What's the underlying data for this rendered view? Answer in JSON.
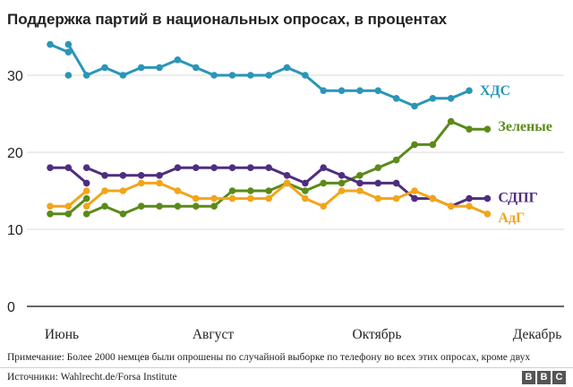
{
  "chart_data": {
    "type": "line",
    "title": "Поддержка партий в национальных опросах, в процентах",
    "ylim": [
      0,
      36
    ],
    "yticks": [
      0,
      10,
      20,
      30
    ],
    "grid": true,
    "x_tick_labels": [
      "Июнь",
      "Август",
      "Октябрь",
      "Декабрь"
    ],
    "series": [
      {
        "name": "ХДС",
        "color": "#2a95b8",
        "segments": [
          [
            34,
            33
          ],
          [
            30
          ],
          [
            34,
            30,
            31,
            30,
            31,
            31,
            32,
            31,
            30,
            30,
            30,
            30,
            31,
            30,
            28,
            28,
            28,
            28,
            27,
            26,
            27,
            27,
            28
          ]
        ]
      },
      {
        "name": "Зеленые",
        "color": "#5b8a1a",
        "segments": [
          [
            12,
            12,
            14
          ],
          [
            12,
            13,
            12,
            13,
            13,
            13,
            13,
            13,
            15,
            15,
            15,
            16,
            15,
            16,
            16,
            17,
            18,
            19,
            21,
            21,
            24,
            23,
            23
          ]
        ]
      },
      {
        "name": "СДПГ",
        "color": "#4f2d7f",
        "segments": [
          [
            18,
            18,
            16
          ],
          [
            18,
            17,
            17,
            17,
            17,
            18,
            18,
            18,
            18,
            18,
            18,
            17,
            16,
            18,
            17,
            16,
            16,
            16,
            14,
            14,
            13,
            14,
            14
          ]
        ]
      },
      {
        "name": "АдГ",
        "color": "#f2a51b",
        "segments": [
          [
            13,
            13,
            15
          ],
          [
            13,
            15,
            15,
            16,
            16,
            15,
            14,
            14,
            14,
            14,
            14,
            16,
            14,
            13,
            15,
            15,
            14,
            14,
            15,
            14,
            13,
            13,
            12
          ]
        ]
      }
    ]
  },
  "footer": {
    "note": "Примечание: Более 2000 немцев были опрошены по случайной выборке по телефону во всех этих опросах, кроме двух",
    "source": "Источники: Wahlrecht.de/Forsa Institute",
    "logo": [
      "B",
      "B",
      "C"
    ]
  }
}
